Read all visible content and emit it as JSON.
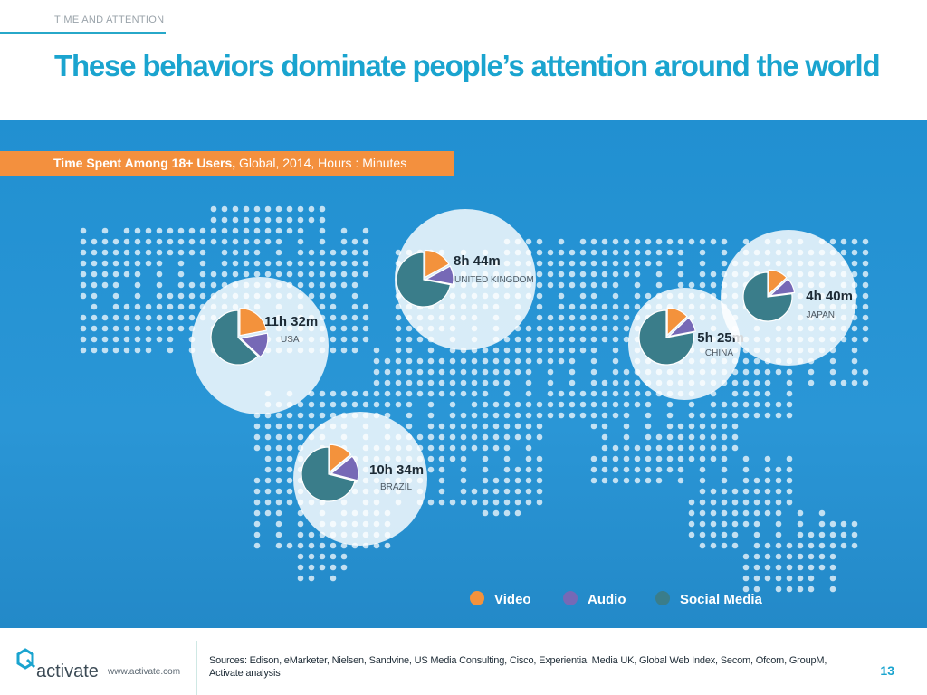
{
  "header": {
    "section_label": "TIME AND ATTENTION",
    "title": "These behaviors dominate people’s attention around the world"
  },
  "subtitle": {
    "bold": "Time Spent Among 18+ Users,",
    "rest": " Global, 2014, Hours : Minutes"
  },
  "colors": {
    "video": "#f3923c",
    "audio": "#7669b6",
    "social": "#3a7d8a"
  },
  "chart_data": {
    "type": "pie",
    "title": "Time Spent Among 18+ Users, Global, 2014, Hours : Minutes",
    "legend": [
      "Video",
      "Audio",
      "Social Media"
    ],
    "legend_position": "bottom-right",
    "pies": [
      {
        "country": "USA",
        "total": "11h 32m",
        "shares": {
          "video": 22,
          "audio": 15,
          "social": 63
        }
      },
      {
        "country": "UNITED KINGDOM",
        "total": "8h 44m",
        "shares": {
          "video": 17,
          "audio": 11,
          "social": 72
        }
      },
      {
        "country": "BRAZIL",
        "total": "10h 34m",
        "shares": {
          "video": 14,
          "audio": 15,
          "social": 71
        }
      },
      {
        "country": "CHINA",
        "total": "5h 25m",
        "shares": {
          "video": 13,
          "audio": 9,
          "social": 78
        }
      },
      {
        "country": "JAPAN",
        "total": "4h 40m",
        "shares": {
          "video": 13,
          "audio": 10,
          "social": 77
        }
      }
    ]
  },
  "footer": {
    "brand": "activate",
    "url": "www.activate.com",
    "sources": "Sources: Edison, eMarketer, Nielsen, Sandvine, US Media Consulting, Cisco, Experientia, Media UK, Global Web Index, Secom, Ofcom, GroupM, Activate analysis",
    "page_number": "13"
  }
}
